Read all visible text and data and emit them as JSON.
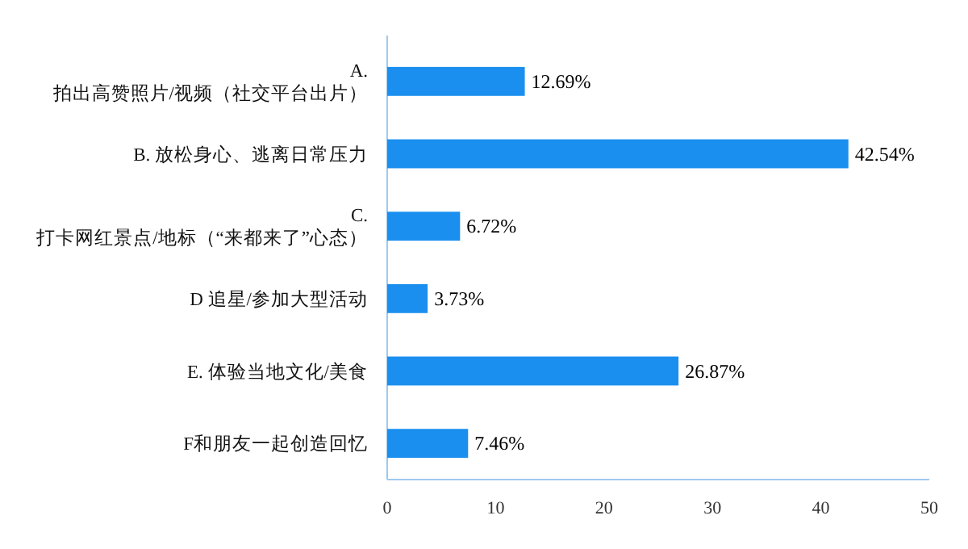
{
  "chart_data": {
    "type": "bar",
    "orientation": "horizontal",
    "categories": [
      "A.\n拍出高赞照片/视频（社交平台出片）",
      "B. 放松身心、逃离日常压力",
      "C.\n打卡网红景点/地标（“来都来了”心态）",
      "D 追星/参加大型活动",
      "E. 体验当地文化/美食",
      "F和朋友一起创造回忆"
    ],
    "values": [
      12.69,
      42.54,
      6.72,
      3.73,
      26.87,
      7.46
    ],
    "value_labels": [
      "12.69%",
      "42.54%",
      "6.72%",
      "3.73%",
      "26.87%",
      "7.46%"
    ],
    "color": "#1a8fef",
    "xlim": [
      0,
      50
    ],
    "xticks": [
      0,
      10,
      20,
      30,
      40,
      50
    ]
  }
}
